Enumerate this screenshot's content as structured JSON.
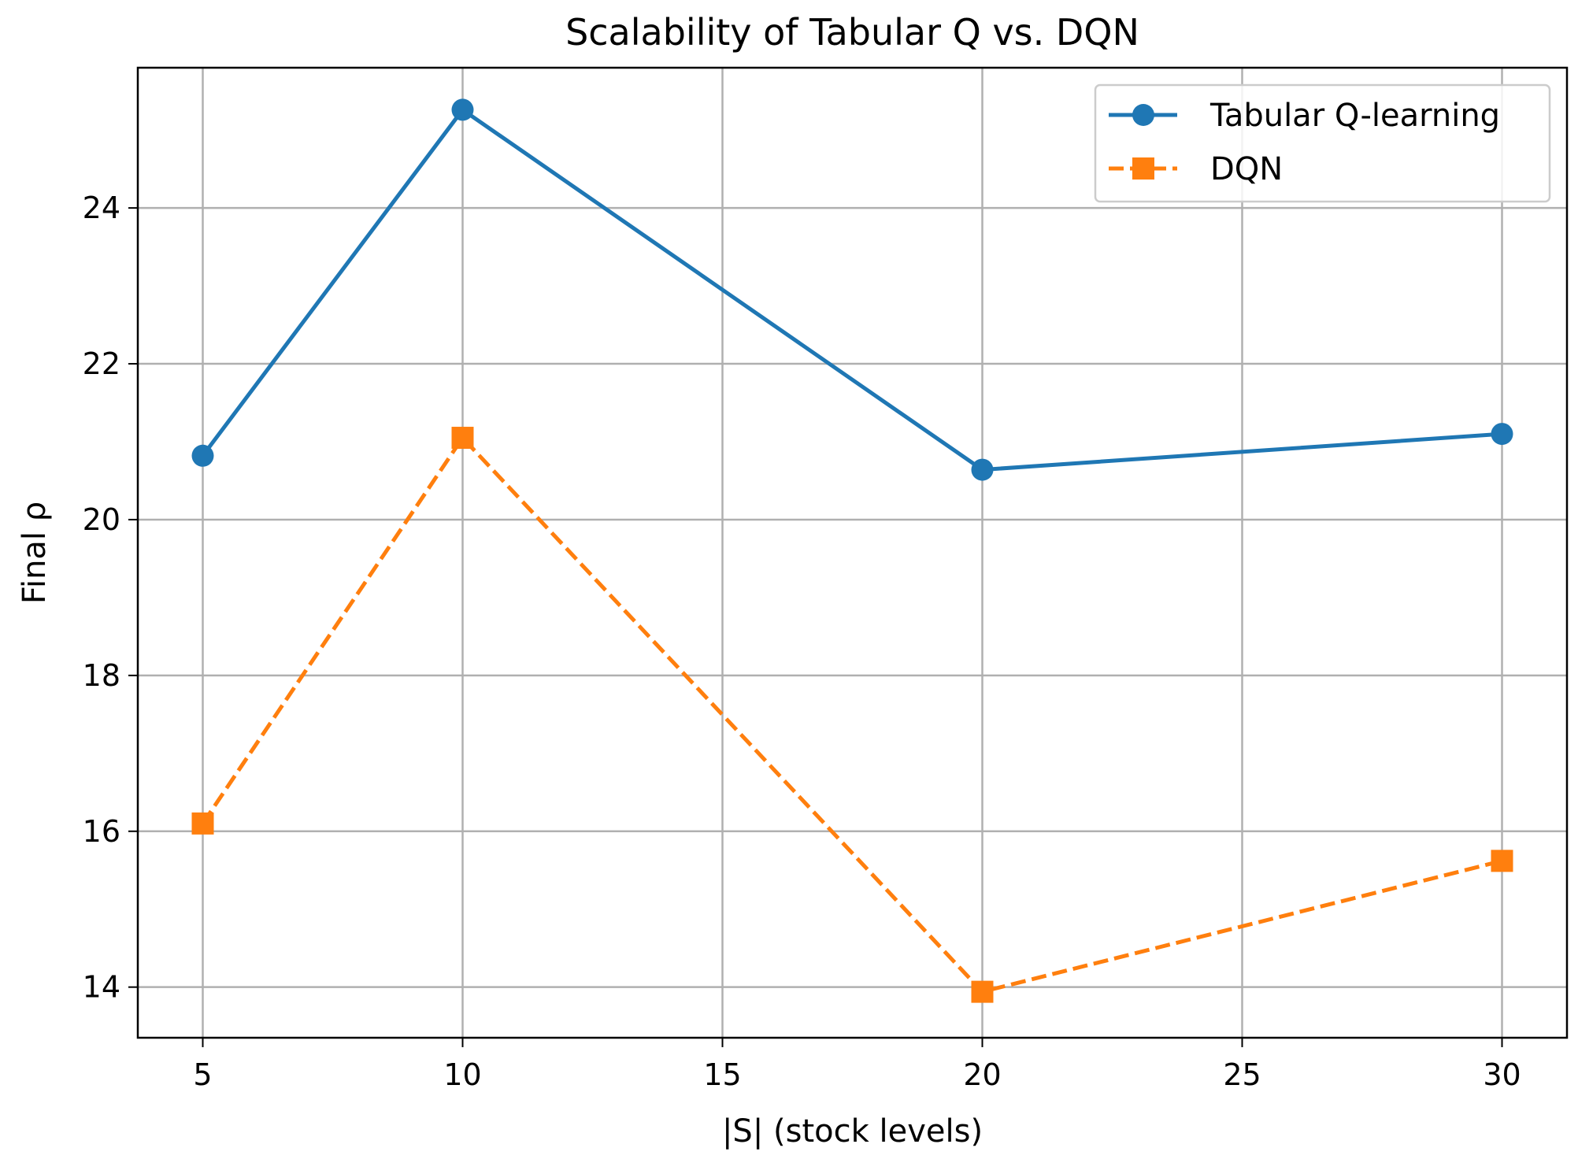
{
  "chart_data": {
    "type": "line",
    "title": "Scalability of Tabular Q vs. DQN",
    "xlabel": "|S| (stock levels)",
    "ylabel": "Final ρ",
    "x": [
      5,
      10,
      20,
      30
    ],
    "xlim": [
      3.75,
      31.25
    ],
    "ylim": [
      13.35,
      25.8
    ],
    "xticks": [
      5,
      10,
      15,
      20,
      25,
      30
    ],
    "yticks": [
      14,
      16,
      18,
      20,
      22,
      24
    ],
    "grid": true,
    "legend_position": "top-right",
    "series": [
      {
        "name": "Tabular Q-learning",
        "values": [
          20.82,
          25.26,
          20.64,
          21.1
        ],
        "color": "#1f77b4",
        "marker": "circle",
        "linestyle": "solid"
      },
      {
        "name": "DQN",
        "values": [
          16.1,
          21.05,
          13.94,
          15.62
        ],
        "color": "#ff7f0e",
        "marker": "square",
        "linestyle": "dashed"
      }
    ]
  }
}
